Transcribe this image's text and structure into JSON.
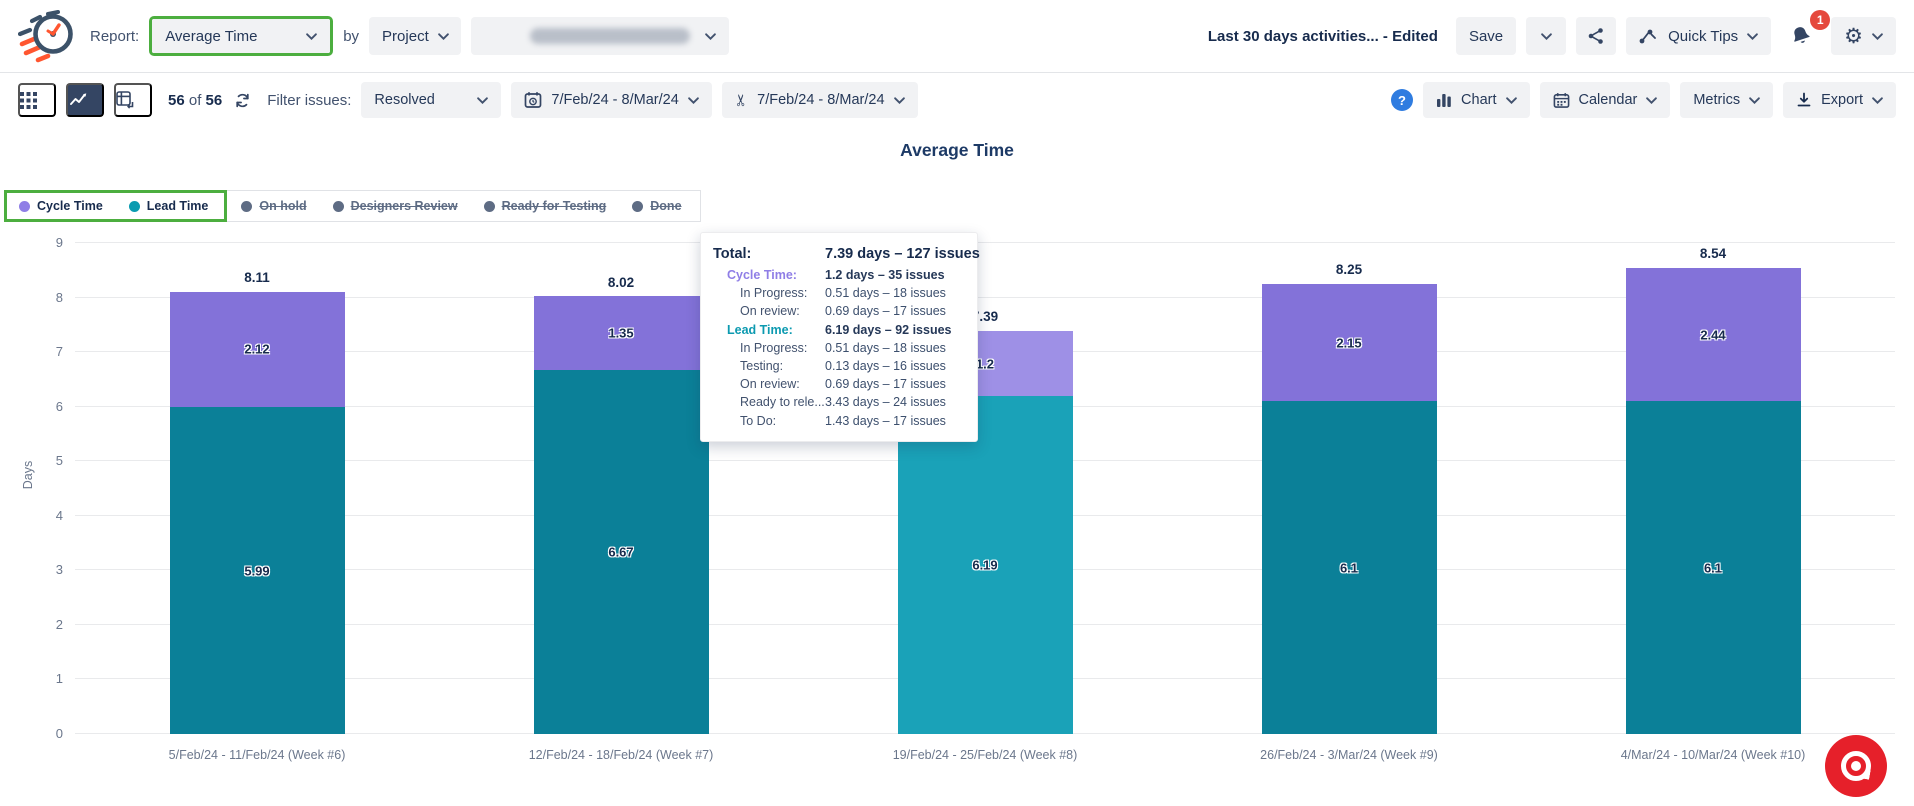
{
  "colors": {
    "highlight_green": "#4cae3f",
    "cycle_purple": "#8372d9",
    "cycle_purple_hover": "#9e90e6",
    "lead_teal": "#0b8098",
    "lead_teal_hover": "#1aa2b8",
    "badge_red": "#e5483c",
    "fab_red": "#e6202a",
    "selected_view_bg": "#344563"
  },
  "header": {
    "report_label": "Report:",
    "report_dropdown": "Average Time",
    "by_label": "by",
    "group_dropdown": "Project",
    "project_dropdown_value": "",
    "saved_view": "Last 30 days activities... - Edited",
    "save_button": "Save",
    "quick_tips_button": "Quick Tips",
    "notification_badge": "1"
  },
  "toolbar": {
    "count_current": "56",
    "of_label": "of",
    "count_total": "56",
    "filter_label": "Filter issues:",
    "filter_dropdown": "Resolved",
    "date_range_primary": "7/Feb/24 - 8/Mar/24",
    "date_range_secondary": "7/Feb/24 - 8/Mar/24",
    "help_text": "?",
    "chart_button": "Chart",
    "calendar_button": "Calendar",
    "metrics_button": "Metrics",
    "export_button": "Export"
  },
  "chart": {
    "title": "Average Time",
    "ylabel": "Days",
    "legend_active": [
      {
        "label": "Cycle Time",
        "color": "#8f7ee6"
      },
      {
        "label": "Lead Time",
        "color": "#0a9bb0"
      }
    ],
    "legend_inactive": [
      "On hold",
      "Designers Review",
      "Ready for Testing",
      "Done"
    ]
  },
  "chart_data": {
    "type": "bar",
    "stacked": true,
    "title": "Average Time",
    "ylabel": "Days",
    "xlabel": "",
    "ylim": [
      0,
      9
    ],
    "yticks": [
      0,
      1,
      2,
      3,
      4,
      5,
      6,
      7,
      8,
      9
    ],
    "grid": true,
    "legend_position": "top-left",
    "categories": [
      "5/Feb/24 - 11/Feb/24 (Week #6)",
      "12/Feb/24 - 18/Feb/24 (Week #7)",
      "19/Feb/24 - 25/Feb/24 (Week #8)",
      "26/Feb/24 - 3/Mar/24 (Week #9)",
      "4/Mar/24 - 10/Mar/24 (Week #10)"
    ],
    "series": [
      {
        "name": "Lead Time",
        "color": "#0b8098",
        "hover_color": "#1aa2b8",
        "values": [
          5.99,
          6.67,
          6.19,
          6.1,
          6.1
        ],
        "labels": [
          "5.99",
          "6.67",
          "6.19",
          "6.1",
          "6.1"
        ]
      },
      {
        "name": "Cycle Time",
        "color": "#8372d9",
        "hover_color": "#9e90e6",
        "values": [
          2.12,
          1.35,
          1.2,
          2.15,
          2.44
        ],
        "labels": [
          "2.12",
          "1.35",
          "1.2",
          "2.15",
          "2.44"
        ]
      }
    ],
    "totals": [
      "8.11",
      "8.02",
      "7.39",
      "8.25",
      "8.54"
    ],
    "hover_index": 2
  },
  "tooltip": {
    "rows": [
      {
        "label": "Total:",
        "value": "7.39 days – 127 issues",
        "style": "total"
      },
      {
        "label": "Cycle Time:",
        "value": "1.2 days – 35 issues",
        "style": "cycle"
      },
      {
        "label": "In Progress:",
        "value": "0.51 days – 18 issues",
        "style": "sub"
      },
      {
        "label": "On review:",
        "value": "0.69 days – 17 issues",
        "style": "sub"
      },
      {
        "label": "Lead Time:",
        "value": "6.19 days – 92 issues",
        "style": "lead"
      },
      {
        "label": "In Progress:",
        "value": "0.51 days – 18 issues",
        "style": "sub"
      },
      {
        "label": "Testing:",
        "value": "0.13 days – 16 issues",
        "style": "sub"
      },
      {
        "label": "On review:",
        "value": "0.69 days – 17 issues",
        "style": "sub"
      },
      {
        "label": "Ready to rele...",
        "value": "3.43 days – 24 issues",
        "style": "sub"
      },
      {
        "label": "To Do:",
        "value": "1.43 days – 17 issues",
        "style": "sub"
      }
    ]
  }
}
